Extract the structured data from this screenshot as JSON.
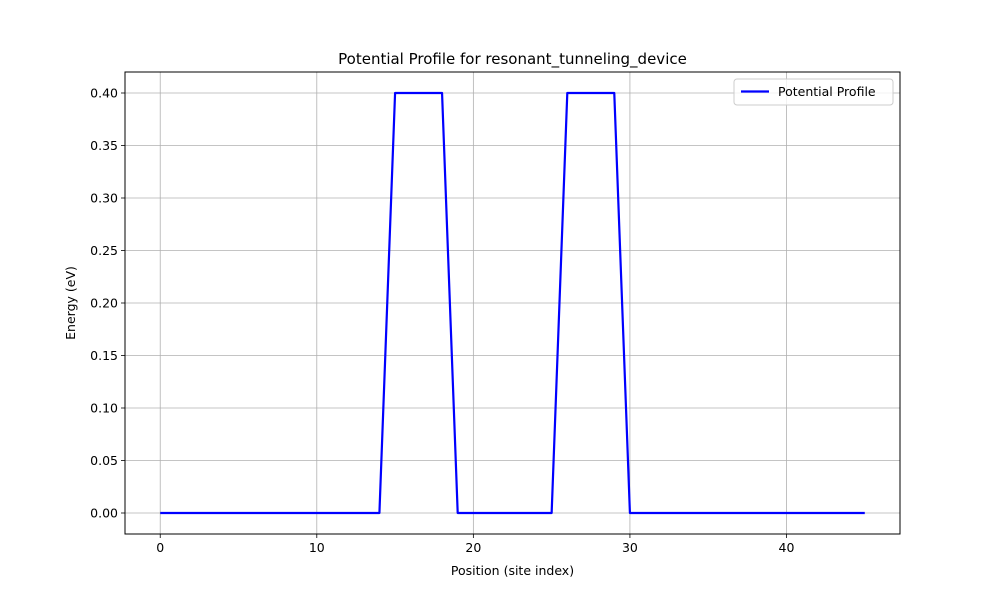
{
  "chart_data": {
    "type": "line",
    "title": "Potential Profile for resonant_tunneling_device",
    "xlabel": "Position (site index)",
    "ylabel": "Energy (eV)",
    "xlim": [
      -2.25,
      47.25
    ],
    "ylim": [
      -0.02,
      0.42
    ],
    "xticks": [
      0,
      10,
      20,
      30,
      40
    ],
    "xtick_labels": [
      "0",
      "10",
      "20",
      "30",
      "40"
    ],
    "yticks": [
      0.0,
      0.05,
      0.1,
      0.15,
      0.2,
      0.25,
      0.3,
      0.35,
      0.4
    ],
    "ytick_labels": [
      "0.00",
      "0.05",
      "0.10",
      "0.15",
      "0.20",
      "0.25",
      "0.30",
      "0.35",
      "0.40"
    ],
    "grid": true,
    "legend_position": "top-right",
    "series": [
      {
        "name": "Potential Profile",
        "color": "#0000ff",
        "x": [
          0,
          1,
          2,
          3,
          4,
          5,
          6,
          7,
          8,
          9,
          10,
          11,
          12,
          13,
          14,
          15,
          16,
          17,
          18,
          19,
          20,
          21,
          22,
          23,
          24,
          25,
          26,
          27,
          28,
          29,
          30,
          31,
          32,
          33,
          34,
          35,
          36,
          37,
          38,
          39,
          40,
          41,
          42,
          43,
          44,
          45
        ],
        "y": [
          0,
          0,
          0,
          0,
          0,
          0,
          0,
          0,
          0,
          0,
          0,
          0,
          0,
          0,
          0,
          0.4,
          0.4,
          0.4,
          0.4,
          0,
          0,
          0,
          0,
          0,
          0,
          0,
          0.4,
          0.4,
          0.4,
          0.4,
          0,
          0,
          0,
          0,
          0,
          0,
          0,
          0,
          0,
          0,
          0,
          0,
          0,
          0,
          0,
          0
        ]
      }
    ]
  },
  "colors": {
    "grid": "#b0b0b0",
    "axes": "#000000",
    "legend_border": "#cccccc"
  }
}
